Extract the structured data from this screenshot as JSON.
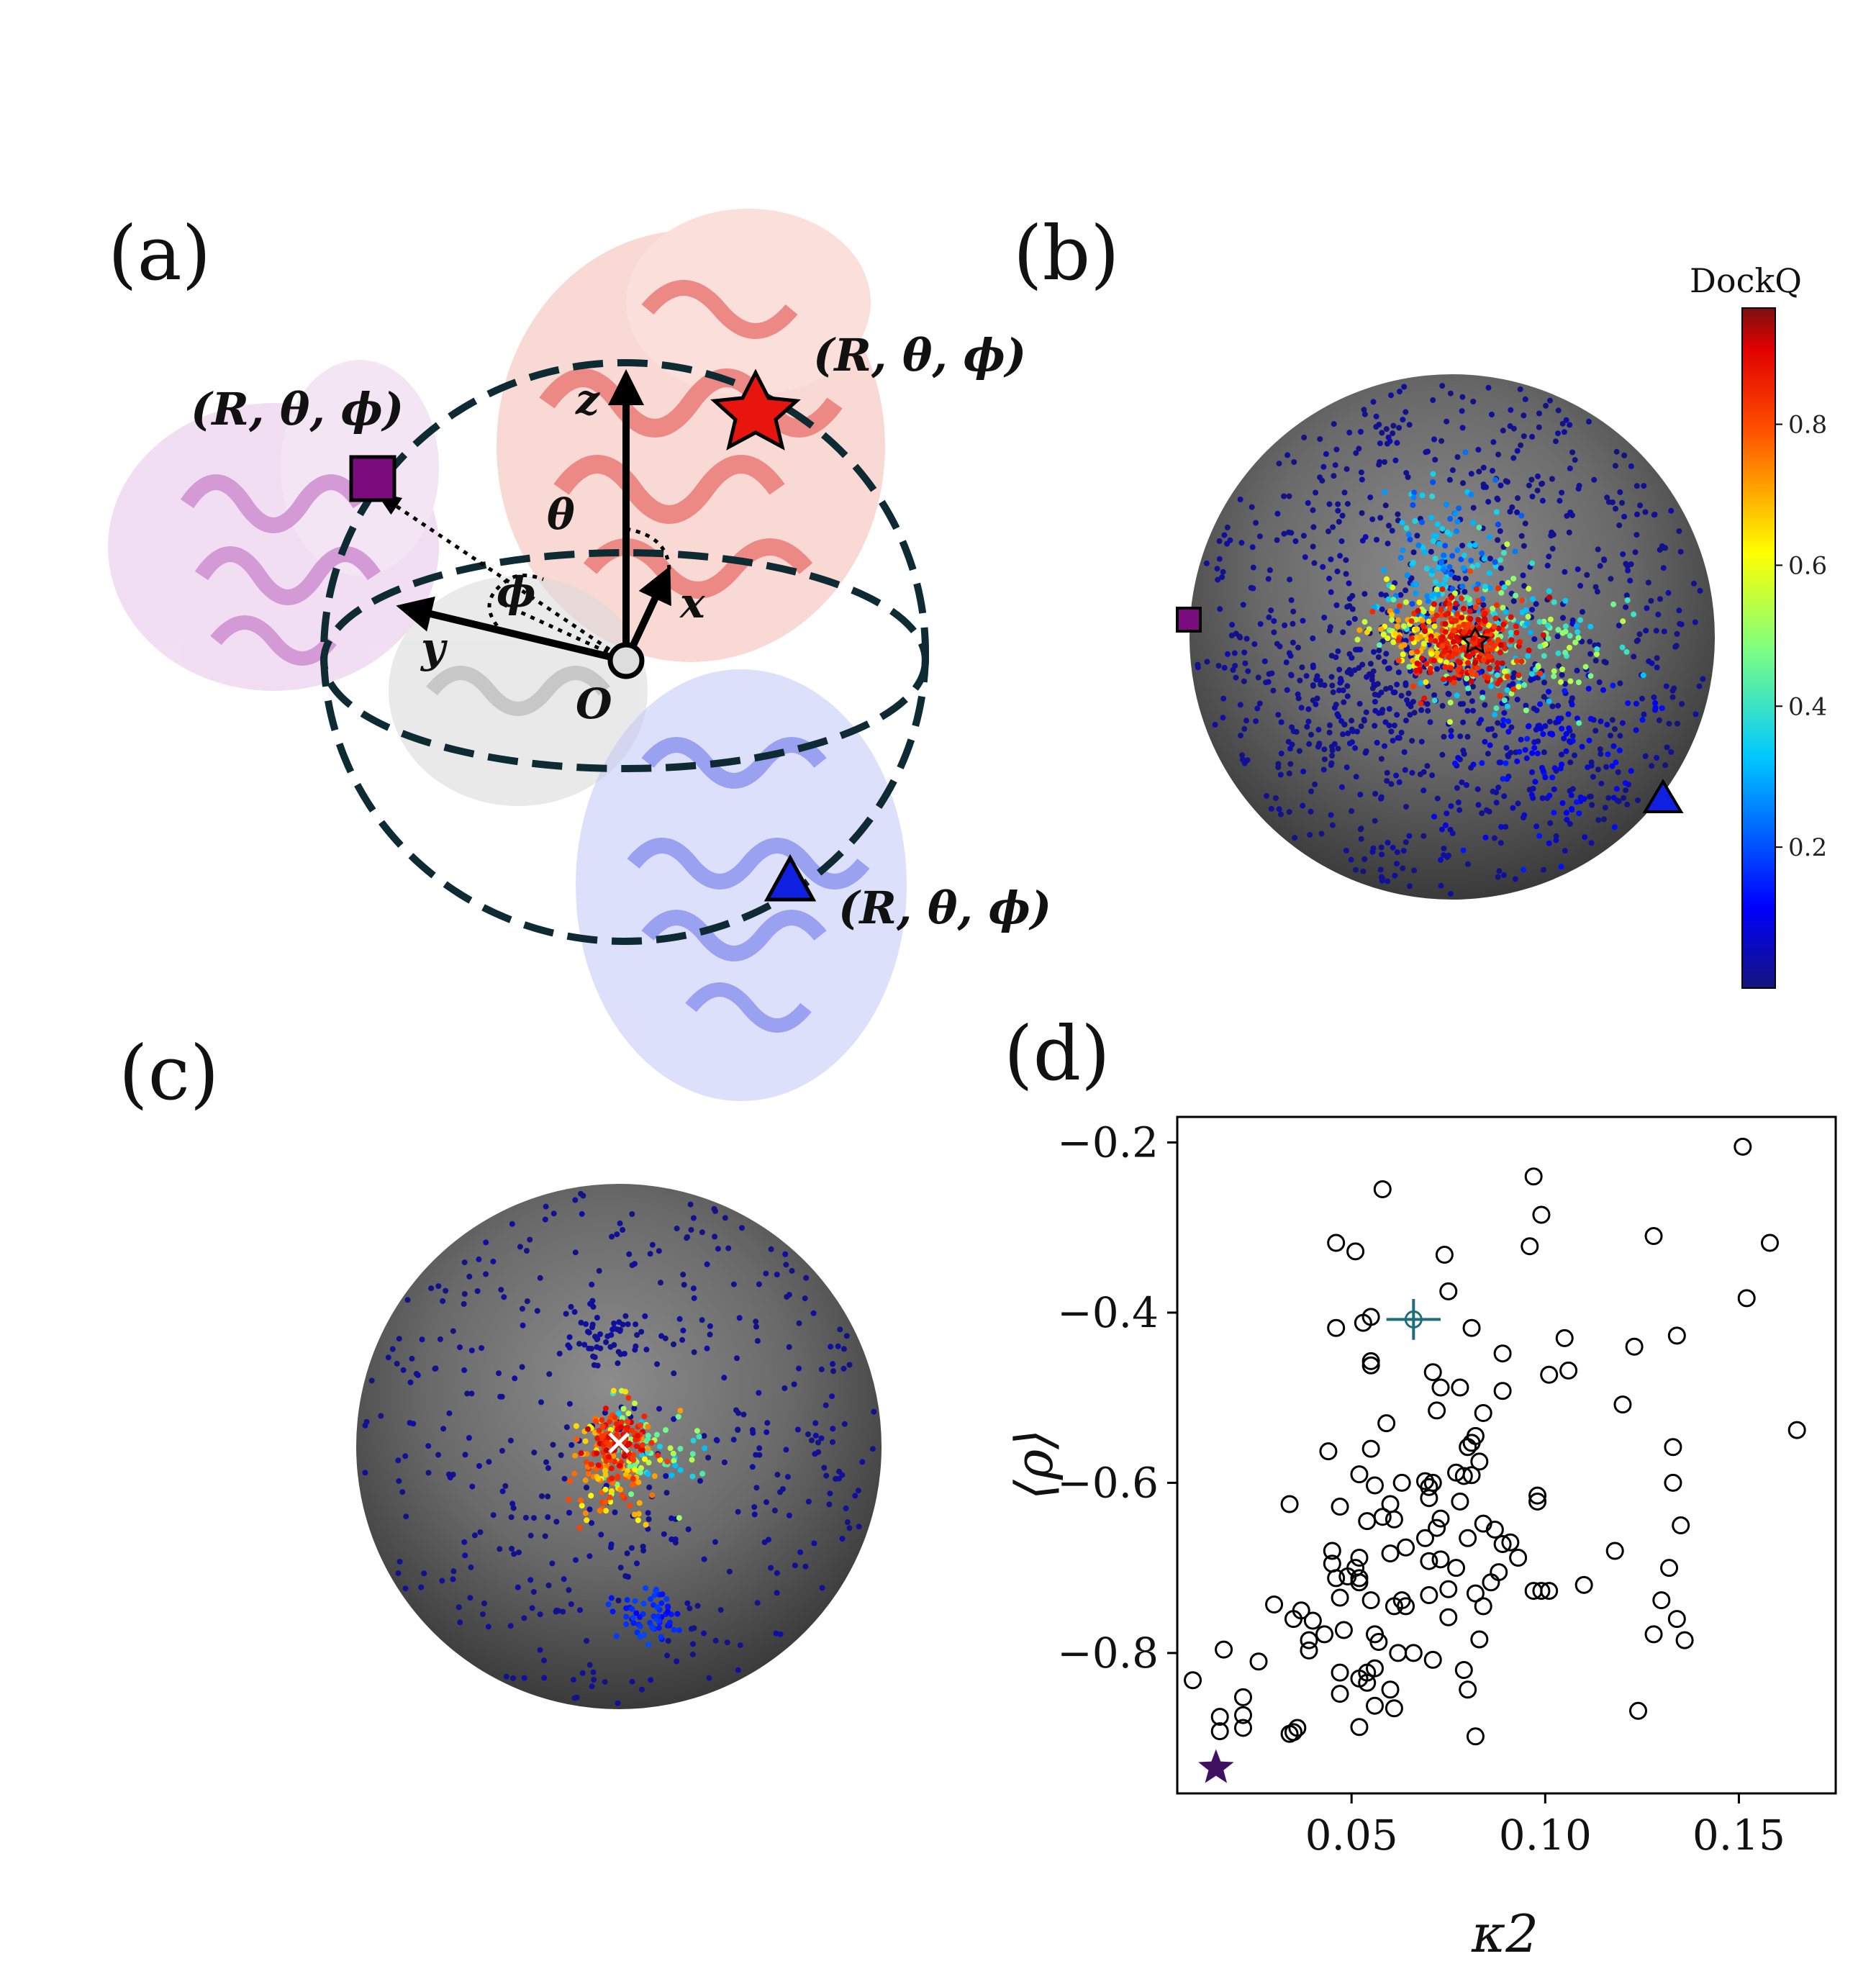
{
  "panels": {
    "a": {
      "label": "(a)",
      "coord_labels": [
        "(R, θ, ϕ)",
        "(R, θ, ϕ)",
        "(R, θ, ϕ)"
      ],
      "axes": {
        "z": "z",
        "x": "x",
        "y": "y",
        "origin": "O",
        "theta": "θ",
        "phi": "ϕ"
      },
      "colors": {
        "red_star": "#e8140e",
        "purple_square": "#7a0c7d",
        "blue_triangle": "#1020e0",
        "outline": "#0e2a33"
      }
    },
    "b": {
      "label": "(b)",
      "colorbar": {
        "title": "DockQ",
        "ticks": [
          "0.2",
          "0.4",
          "0.6",
          "0.8"
        ],
        "colormap": "jet"
      }
    },
    "c": {
      "label": "(c)"
    },
    "d": {
      "label": "(d)"
    }
  },
  "chart_data": {
    "type": "scatter",
    "xlabel": "κ2",
    "ylabel": "⟨ρ⟩",
    "xlim": [
      0.005,
      0.175
    ],
    "ylim": [
      -0.965,
      -0.17
    ],
    "xticks": [
      0.05,
      0.1,
      0.15
    ],
    "xtick_labels": [
      "0.05",
      "0.10",
      "0.15"
    ],
    "yticks": [
      -0.8,
      -0.6,
      -0.4,
      -0.2
    ],
    "ytick_labels": [
      "−0.8",
      "−0.6",
      "−0.4",
      "−0.2"
    ],
    "grid": false,
    "series": [
      {
        "marker": "open-circle",
        "color": "#000000",
        "points": [
          [
            0.151,
            -0.205
          ],
          [
            0.097,
            -0.24
          ],
          [
            0.058,
            -0.255
          ],
          [
            0.099,
            -0.285
          ],
          [
            0.128,
            -0.31
          ],
          [
            0.158,
            -0.318
          ],
          [
            0.046,
            -0.318
          ],
          [
            0.051,
            -0.328
          ],
          [
            0.096,
            -0.322
          ],
          [
            0.074,
            -0.332
          ],
          [
            0.075,
            -0.375
          ],
          [
            0.152,
            -0.383
          ],
          [
            0.055,
            -0.405
          ],
          [
            0.053,
            -0.412
          ],
          [
            0.046,
            -0.418
          ],
          [
            0.081,
            -0.418
          ],
          [
            0.105,
            -0.43
          ],
          [
            0.134,
            -0.427
          ],
          [
            0.123,
            -0.44
          ],
          [
            0.089,
            -0.448
          ],
          [
            0.055,
            -0.457
          ],
          [
            0.055,
            -0.462
          ],
          [
            0.071,
            -0.47
          ],
          [
            0.106,
            -0.468
          ],
          [
            0.101,
            -0.473
          ],
          [
            0.073,
            -0.488
          ],
          [
            0.078,
            -0.488
          ],
          [
            0.089,
            -0.492
          ],
          [
            0.12,
            -0.508
          ],
          [
            0.072,
            -0.515
          ],
          [
            0.084,
            -0.518
          ],
          [
            0.059,
            -0.53
          ],
          [
            0.165,
            -0.538
          ],
          [
            0.082,
            -0.545
          ],
          [
            0.081,
            -0.553
          ],
          [
            0.08,
            -0.558
          ],
          [
            0.044,
            -0.563
          ],
          [
            0.055,
            -0.56
          ],
          [
            0.133,
            -0.558
          ],
          [
            0.083,
            -0.575
          ],
          [
            0.077,
            -0.588
          ],
          [
            0.079,
            -0.592
          ],
          [
            0.081,
            -0.591
          ],
          [
            0.052,
            -0.59
          ],
          [
            0.069,
            -0.598
          ],
          [
            0.071,
            -0.6
          ],
          [
            0.07,
            -0.605
          ],
          [
            0.133,
            -0.6
          ],
          [
            0.056,
            -0.603
          ],
          [
            0.063,
            -0.6
          ],
          [
            0.098,
            -0.615
          ],
          [
            0.098,
            -0.622
          ],
          [
            0.06,
            -0.625
          ],
          [
            0.07,
            -0.618
          ],
          [
            0.034,
            -0.625
          ],
          [
            0.047,
            -0.628
          ],
          [
            0.078,
            -0.622
          ],
          [
            0.054,
            -0.645
          ],
          [
            0.058,
            -0.64
          ],
          [
            0.061,
            -0.643
          ],
          [
            0.073,
            -0.642
          ],
          [
            0.084,
            -0.648
          ],
          [
            0.135,
            -0.65
          ],
          [
            0.072,
            -0.653
          ],
          [
            0.087,
            -0.655
          ],
          [
            0.08,
            -0.665
          ],
          [
            0.069,
            -0.665
          ],
          [
            0.089,
            -0.672
          ],
          [
            0.091,
            -0.67
          ],
          [
            0.064,
            -0.676
          ],
          [
            0.045,
            -0.68
          ],
          [
            0.06,
            -0.683
          ],
          [
            0.118,
            -0.68
          ],
          [
            0.052,
            -0.688
          ],
          [
            0.073,
            -0.69
          ],
          [
            0.07,
            -0.692
          ],
          [
            0.045,
            -0.695
          ],
          [
            0.093,
            -0.688
          ],
          [
            0.051,
            -0.7
          ],
          [
            0.077,
            -0.7
          ],
          [
            0.088,
            -0.705
          ],
          [
            0.132,
            -0.7
          ],
          [
            0.049,
            -0.71
          ],
          [
            0.052,
            -0.712
          ],
          [
            0.046,
            -0.712
          ],
          [
            0.086,
            -0.717
          ],
          [
            0.11,
            -0.72
          ],
          [
            0.052,
            -0.717
          ],
          [
            0.075,
            -0.725
          ],
          [
            0.097,
            -0.727
          ],
          [
            0.099,
            -0.727
          ],
          [
            0.101,
            -0.727
          ],
          [
            0.082,
            -0.73
          ],
          [
            0.07,
            -0.732
          ],
          [
            0.047,
            -0.735
          ],
          [
            0.063,
            -0.738
          ],
          [
            0.055,
            -0.738
          ],
          [
            0.13,
            -0.738
          ],
          [
            0.03,
            -0.743
          ],
          [
            0.084,
            -0.745
          ],
          [
            0.037,
            -0.75
          ],
          [
            0.061,
            -0.745
          ],
          [
            0.064,
            -0.745
          ],
          [
            0.075,
            -0.758
          ],
          [
            0.035,
            -0.76
          ],
          [
            0.04,
            -0.762
          ],
          [
            0.134,
            -0.76
          ],
          [
            0.048,
            -0.773
          ],
          [
            0.043,
            -0.778
          ],
          [
            0.056,
            -0.778
          ],
          [
            0.128,
            -0.778
          ],
          [
            0.039,
            -0.785
          ],
          [
            0.057,
            -0.787
          ],
          [
            0.083,
            -0.784
          ],
          [
            0.136,
            -0.785
          ],
          [
            0.039,
            -0.797
          ],
          [
            0.017,
            -0.796
          ],
          [
            0.062,
            -0.8
          ],
          [
            0.066,
            -0.8
          ],
          [
            0.026,
            -0.81
          ],
          [
            0.071,
            -0.808
          ],
          [
            0.047,
            -0.823
          ],
          [
            0.079,
            -0.82
          ],
          [
            0.054,
            -0.823
          ],
          [
            0.056,
            -0.818
          ],
          [
            0.052,
            -0.83
          ],
          [
            0.054,
            -0.835
          ],
          [
            0.009,
            -0.832
          ],
          [
            0.047,
            -0.848
          ],
          [
            0.022,
            -0.852
          ],
          [
            0.06,
            -0.843
          ],
          [
            0.08,
            -0.843
          ],
          [
            0.056,
            -0.862
          ],
          [
            0.061,
            -0.865
          ],
          [
            0.016,
            -0.875
          ],
          [
            0.022,
            -0.873
          ],
          [
            0.124,
            -0.868
          ],
          [
            0.022,
            -0.888
          ],
          [
            0.052,
            -0.887
          ],
          [
            0.036,
            -0.888
          ],
          [
            0.034,
            -0.895
          ],
          [
            0.016,
            -0.892
          ],
          [
            0.035,
            -0.893
          ],
          [
            0.082,
            -0.898
          ]
        ]
      },
      {
        "marker": "open-circle-with-errorbars",
        "color": "#1d6d7a",
        "points": [
          [
            0.066,
            -0.408
          ]
        ],
        "x_error": 0.007,
        "y_error": 0.024
      },
      {
        "marker": "filled-star",
        "color": "#3e1161",
        "points": [
          [
            0.015,
            -0.935
          ]
        ]
      }
    ]
  }
}
